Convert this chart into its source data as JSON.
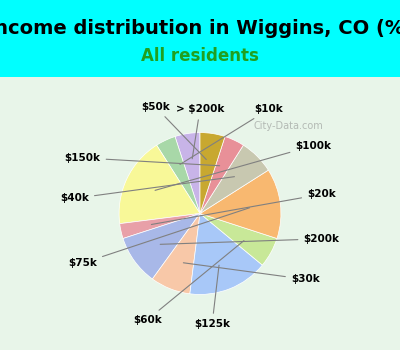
{
  "title": "Income distribution in Wiggins, CO (%)",
  "subtitle": "All residents",
  "background_color": "#00FFFF",
  "chart_bg_color": "#e8f5e9",
  "watermark": "City-Data.com",
  "labels": [
    "> $200k",
    "$10k",
    "$100k",
    "$20k",
    "$200k",
    "$30k",
    "$125k",
    "$60k",
    "$75k",
    "$40k",
    "$150k",
    "$50k"
  ],
  "values": [
    5,
    4,
    18,
    3,
    10,
    8,
    16,
    6,
    14,
    7,
    4,
    5
  ],
  "colors": [
    "#c8b4e8",
    "#a8d8a8",
    "#f8f898",
    "#e8a0a8",
    "#a8b8e8",
    "#f8c8a8",
    "#a8c8f8",
    "#c8e898",
    "#f8b870",
    "#c8c8b0",
    "#e89098",
    "#c8a830"
  ],
  "title_fontsize": 14,
  "subtitle_fontsize": 12,
  "subtitle_color": "#20a020"
}
